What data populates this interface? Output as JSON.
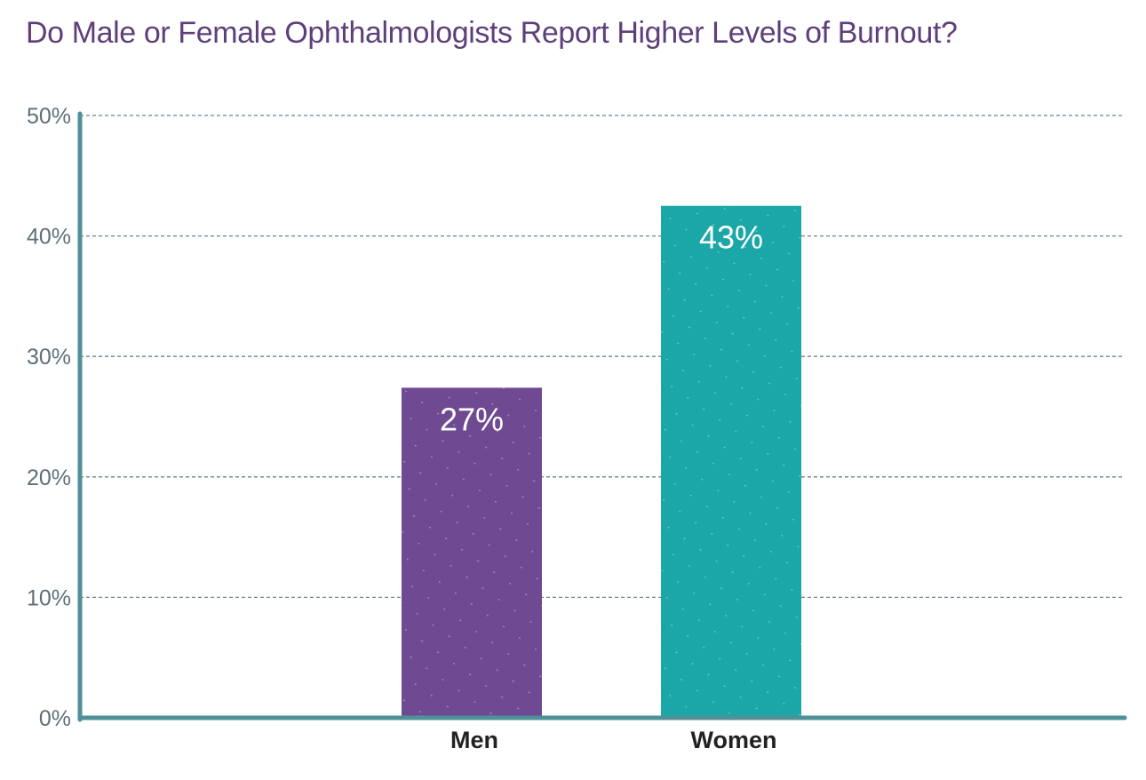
{
  "chart_data": {
    "type": "bar",
    "title": "Do Male or Female Ophthalmologists Report Higher Levels of Burnout?",
    "categories": [
      "Men",
      "Women"
    ],
    "values": [
      27.4,
      42.5
    ],
    "data_labels": [
      "27%",
      "43%"
    ],
    "bar_colors": [
      "#6f4a93",
      "#1ba7a7"
    ],
    "ylim": [
      0,
      50
    ],
    "yticks": [
      0,
      10,
      20,
      30,
      40,
      50
    ],
    "ytick_labels": [
      "0%",
      "10%",
      "20%",
      "30%",
      "40%",
      "50%"
    ],
    "xlabel": "",
    "ylabel": "",
    "grid": true,
    "legend": "none"
  },
  "colors": {
    "title": "#5e3f7b",
    "axis": "#4e9199",
    "grid": "#6e8590",
    "tick_text": "#5f6f78"
  }
}
